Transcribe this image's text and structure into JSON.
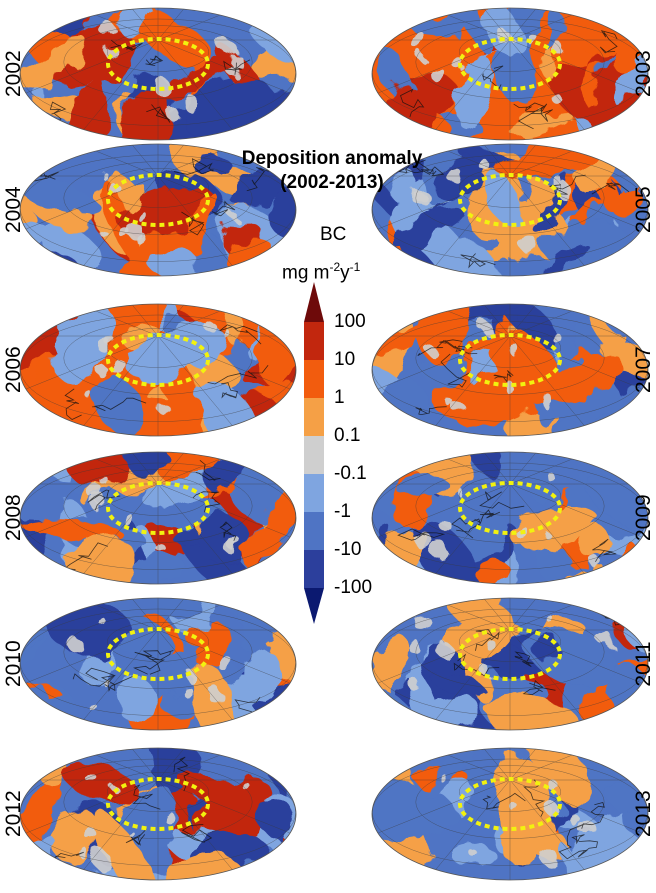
{
  "title": {
    "line1": "Deposition anomaly",
    "line2": "(2002-2013)"
  },
  "colorbar": {
    "variable": "BC",
    "unit_prefix": "mg m",
    "unit_exp1": "-2",
    "unit_mid": "y",
    "unit_exp2": "-1",
    "ticks": [
      "100",
      "10",
      "1",
      "0.1",
      "-0.1",
      "-1",
      "-10",
      "-100"
    ],
    "colors": {
      "overflow_top": "#6e0a0a",
      "band_10_100": "#c2270e",
      "band_1_10": "#f25c0e",
      "band_01_1": "#f5a046",
      "band_neutral": "#cfcfcf",
      "band_m1_m01": "#7fa5e0",
      "band_m10_m1": "#4f74c4",
      "band_m100_m10": "#2c3f9c",
      "overflow_bottom": "#0b1970"
    }
  },
  "maps": [
    {
      "year": "2002",
      "tone": "mixed"
    },
    {
      "year": "2003",
      "tone": "positive"
    },
    {
      "year": "2004",
      "tone": "mixed"
    },
    {
      "year": "2005",
      "tone": "negative"
    },
    {
      "year": "2006",
      "tone": "positive"
    },
    {
      "year": "2007",
      "tone": "negative"
    },
    {
      "year": "2008",
      "tone": "mixed"
    },
    {
      "year": "2009",
      "tone": "negative"
    },
    {
      "year": "2010",
      "tone": "negative"
    },
    {
      "year": "2011",
      "tone": "mixed"
    },
    {
      "year": "2012",
      "tone": "mixed"
    },
    {
      "year": "2013",
      "tone": "negative"
    }
  ],
  "arctic_circle_color": "#f2f20f"
}
